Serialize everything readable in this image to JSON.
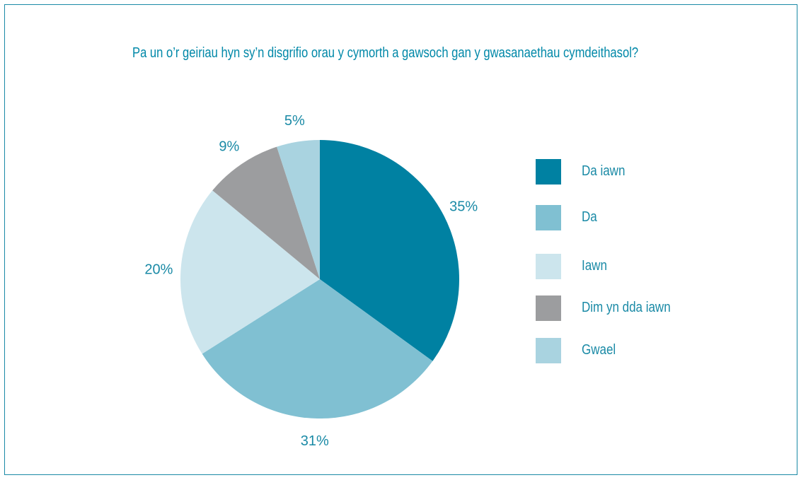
{
  "chart_data": {
    "type": "pie",
    "title": "Pa un o’r geiriau hyn sy’n disgrifio orau y cymorth a gawsoch gan y gwasanaethau cymdeithasol?",
    "slices": [
      {
        "label": "Da iawn",
        "value": 35,
        "value_label": "35%",
        "color": "#0081a2"
      },
      {
        "label": "Da",
        "value": 31,
        "value_label": "31%",
        "color": "#80c0d2"
      },
      {
        "label": "Iawn",
        "value": 20,
        "value_label": "20%",
        "color": "#cce5ed"
      },
      {
        "label": "Dim yn dda iawn",
        "value": 9,
        "value_label": "9%",
        "color": "#9c9d9f"
      },
      {
        "label": "Gwael",
        "value": 5,
        "value_label": "5%",
        "color": "#a9d3e0"
      }
    ],
    "legend_position": "right"
  }
}
